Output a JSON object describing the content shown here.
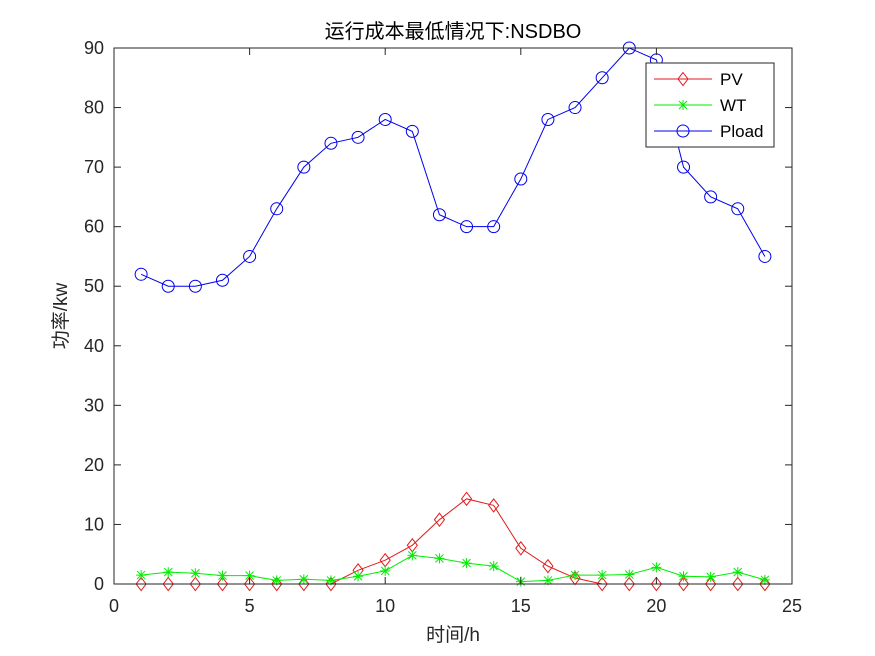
{
  "chart_data": {
    "type": "line",
    "title": "运行成本最低情况下:NSDBO",
    "xlabel": "时间/h",
    "ylabel": "功率/kw",
    "xlim": [
      0,
      25
    ],
    "ylim": [
      0,
      90
    ],
    "xticks": [
      0,
      5,
      10,
      15,
      20,
      25
    ],
    "yticks": [
      0,
      10,
      20,
      30,
      40,
      50,
      60,
      70,
      80,
      90
    ],
    "grid": false,
    "legend_position": "top-right",
    "x": [
      1,
      2,
      3,
      4,
      5,
      6,
      7,
      8,
      9,
      10,
      11,
      12,
      13,
      14,
      15,
      16,
      17,
      18,
      19,
      20,
      21,
      22,
      23,
      24
    ],
    "series": [
      {
        "name": "PV",
        "color": "#e31a1c",
        "marker": "diamond",
        "values": [
          0,
          0,
          0,
          0,
          0,
          0,
          0,
          0,
          2.3,
          4.0,
          6.5,
          10.8,
          14.3,
          13.2,
          6.0,
          3.0,
          1.0,
          0,
          0,
          0,
          0,
          0,
          0,
          0
        ]
      },
      {
        "name": "WT",
        "color": "#00ee00",
        "marker": "asterisk",
        "values": [
          1.5,
          2.0,
          1.8,
          1.4,
          1.4,
          0.6,
          0.8,
          0.6,
          1.3,
          2.2,
          4.8,
          4.3,
          3.5,
          3.0,
          0.4,
          0.6,
          1.5,
          1.5,
          1.6,
          2.8,
          1.3,
          1.2,
          2.0,
          0.7
        ]
      },
      {
        "name": "Pload",
        "color": "#0000ee",
        "marker": "circle",
        "values": [
          52,
          50,
          50,
          51,
          55,
          63,
          70,
          74,
          75,
          78,
          76,
          62,
          60,
          60,
          68,
          78,
          80,
          85,
          90,
          88,
          70,
          65,
          63,
          55
        ]
      }
    ]
  }
}
